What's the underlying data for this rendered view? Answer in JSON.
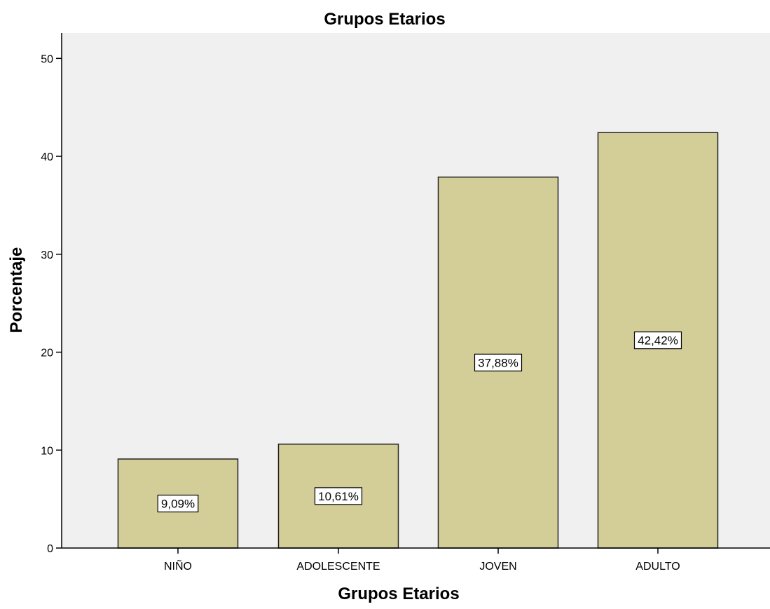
{
  "chart_data": {
    "type": "bar",
    "title": "Grupos Etarios",
    "xlabel": "Grupos Etarios",
    "ylabel": "Porcentaje",
    "categories": [
      "NIÑO",
      "ADOLESCENTE",
      "JOVEN",
      "ADULTO"
    ],
    "values": [
      9.09,
      10.61,
      37.88,
      42.42
    ],
    "data_labels": [
      "9,09%",
      "10,61%",
      "37,88%",
      "42,42%"
    ],
    "yticks": [
      0,
      10,
      20,
      30,
      40,
      50
    ],
    "ylim": [
      0,
      52.6
    ],
    "grid": false,
    "legend": "none",
    "colors": {
      "plot_background": "#f0f0f0",
      "bar_fill": "#d3ce98",
      "bar_stroke": "#222222",
      "label_box_fill": "#ffffff",
      "axis": "#000000"
    }
  }
}
